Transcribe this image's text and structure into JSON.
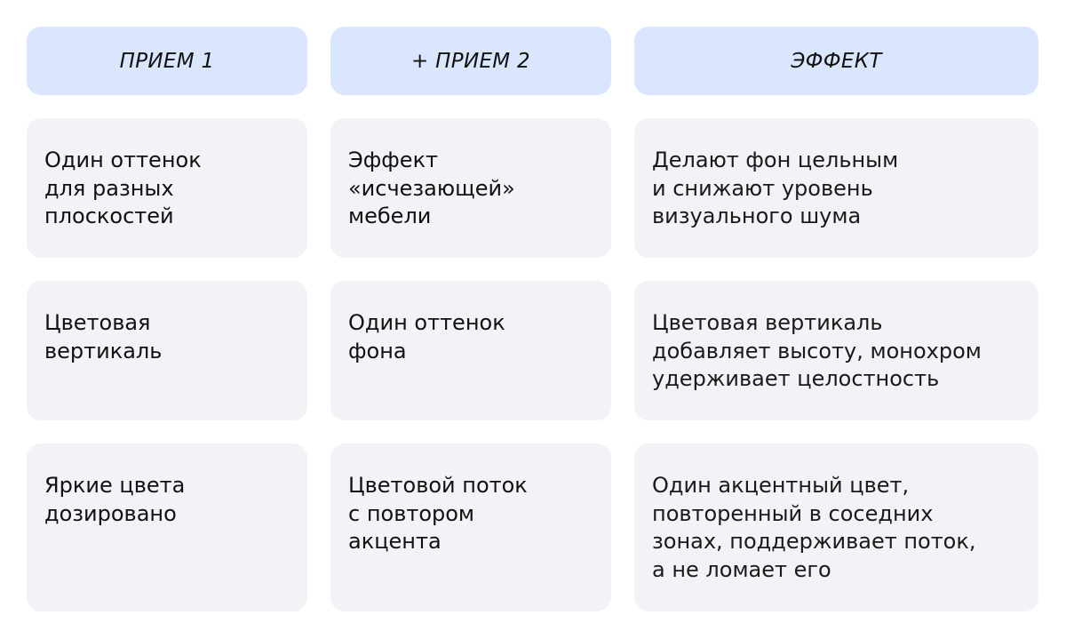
{
  "headers": [
    "ПРИЕМ 1",
    "+ ПРИЕМ 2",
    "ЭФФЕКТ"
  ],
  "rows": [
    {
      "technique1": [
        "Один оттенок",
        "для разных",
        "плоскостей"
      ],
      "technique2": [
        "Эффект",
        "«исчезающей»",
        "мебели"
      ],
      "effect": [
        "Делают фон цельным",
        "и снижают уровень",
        "визуального шума"
      ]
    },
    {
      "technique1": [
        "Цветовая",
        "вертикаль"
      ],
      "technique2": [
        "Один оттенок",
        "фона"
      ],
      "effect": [
        "Цветовая вертикаль",
        "добавляет высоту, монохром",
        "удерживает целостность"
      ]
    },
    {
      "technique1": [
        "Яркие цвета",
        "дозировано"
      ],
      "technique2": [
        "Цветовой поток",
        "с повтором",
        "акцента"
      ],
      "effect": [
        "Один акцентный цвет,",
        "повторенный в соседних",
        "зонах, поддерживает поток,",
        "а не ломает его"
      ]
    }
  ],
  "colors": {
    "header_bg": "#d9e6fd",
    "card_bg": "#f2f3f7"
  }
}
